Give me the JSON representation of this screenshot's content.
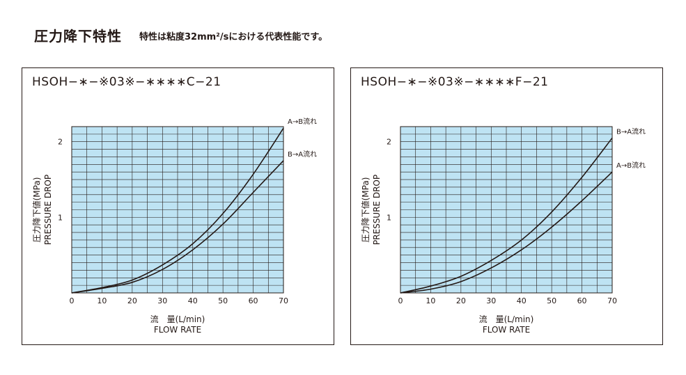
{
  "header": {
    "title": "圧力降下特性",
    "subtitle": "特性は粘度32mm²/sにおける代表性能です。"
  },
  "chart_data": [
    {
      "type": "line",
      "title": "HSOH−∗−※03※−∗∗∗∗C−21",
      "xlabel_jp": "流　量(L/min)",
      "xlabel": "FLOW RATE",
      "ylabel_jp": "圧力降下値(MPa)",
      "ylabel": "PRESSURE DROP",
      "xlim": [
        0,
        70
      ],
      "ylim": [
        0,
        2.2
      ],
      "x_ticks": [
        0,
        10,
        20,
        30,
        40,
        50,
        60,
        70
      ],
      "y_ticks": [
        1,
        2
      ],
      "grid": true,
      "background": "#BEE3F3",
      "series": [
        {
          "name": "A→B流れ",
          "x": [
            0,
            10,
            20,
            30,
            40,
            50,
            60,
            70
          ],
          "y": [
            0,
            0.07,
            0.17,
            0.37,
            0.65,
            1.05,
            1.57,
            2.18
          ]
        },
        {
          "name": "B→A流れ",
          "x": [
            0,
            10,
            20,
            30,
            40,
            50,
            60,
            70
          ],
          "y": [
            0,
            0.06,
            0.14,
            0.31,
            0.57,
            0.91,
            1.33,
            1.75
          ]
        }
      ]
    },
    {
      "type": "line",
      "title": "HSOH−∗−※03※−∗∗∗∗F−21",
      "xlabel_jp": "流　量(L/min)",
      "xlabel": "FLOW RATE",
      "ylabel_jp": "圧力降下値(MPa)",
      "ylabel": "PRESSURE DROP",
      "xlim": [
        0,
        70
      ],
      "ylim": [
        0,
        2.2
      ],
      "x_ticks": [
        0,
        10,
        20,
        30,
        40,
        50,
        60,
        70
      ],
      "y_ticks": [
        1,
        2
      ],
      "grid": true,
      "background": "#BEE3F3",
      "series": [
        {
          "name": "B→A流れ",
          "x": [
            0,
            10,
            20,
            30,
            40,
            50,
            60,
            70
          ],
          "y": [
            0,
            0.09,
            0.22,
            0.43,
            0.7,
            1.07,
            1.53,
            2.05
          ]
        },
        {
          "name": "A→B流れ",
          "x": [
            0,
            10,
            20,
            30,
            40,
            50,
            60,
            70
          ],
          "y": [
            0,
            0.05,
            0.15,
            0.33,
            0.57,
            0.87,
            1.22,
            1.6
          ]
        }
      ]
    }
  ]
}
